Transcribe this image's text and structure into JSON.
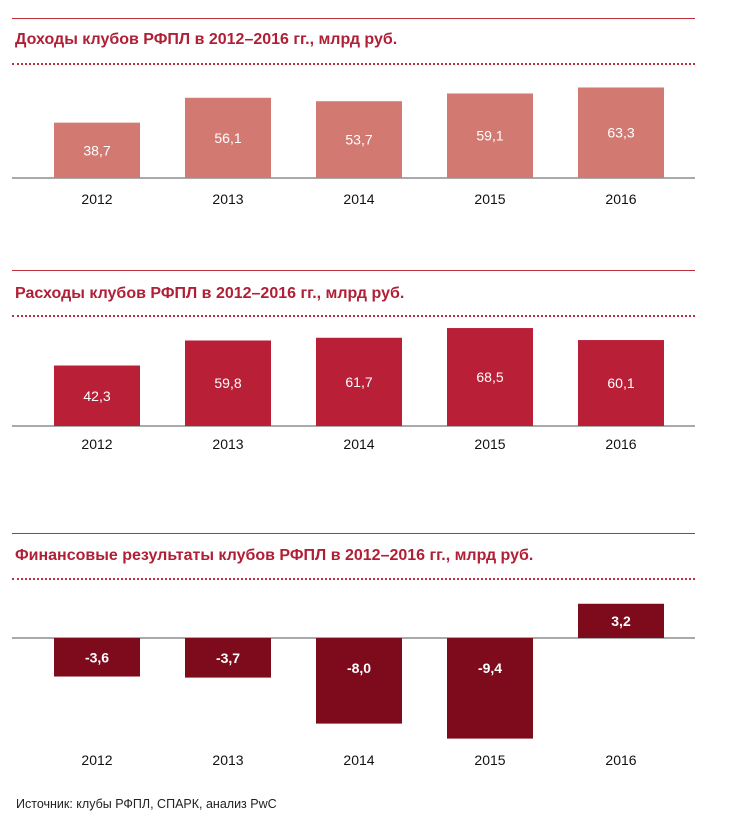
{
  "source_note": "Источник: клубы РФПЛ, СПАРК, анализ PwC",
  "chart_data": [
    {
      "type": "bar",
      "title": "Доходы клубов РФПЛ в 2012–2016 гг., млрд руб.",
      "categories": [
        "2012",
        "2013",
        "2014",
        "2015",
        "2016"
      ],
      "values": [
        38.7,
        56.1,
        53.7,
        59.1,
        63.3
      ],
      "value_labels": [
        "38,7",
        "56,1",
        "53,7",
        "59,1",
        "63,3"
      ],
      "color": "#d27a72",
      "xlabel": "",
      "ylabel": "",
      "grid": false
    },
    {
      "type": "bar",
      "title": "Расходы клубов РФПЛ в 2012–2016 гг., млрд руб.",
      "categories": [
        "2012",
        "2013",
        "2014",
        "2015",
        "2016"
      ],
      "values": [
        42.3,
        59.8,
        61.7,
        68.5,
        60.1
      ],
      "value_labels": [
        "42,3",
        "59,8",
        "61,7",
        "68,5",
        "60,1"
      ],
      "color": "#b91f36",
      "xlabel": "",
      "ylabel": "",
      "grid": false
    },
    {
      "type": "bar",
      "title": "Финансовые результаты клубов РФПЛ в 2012–2016 гг., млрд руб.",
      "categories": [
        "2012",
        "2013",
        "2014",
        "2015",
        "2016"
      ],
      "values": [
        -3.6,
        -3.7,
        -8.0,
        -9.4,
        3.2
      ],
      "value_labels": [
        "-3,6",
        "-3,7",
        "-8,0",
        "-9,4",
        "3,2"
      ],
      "color": "#7d0b1c",
      "xlabel": "",
      "ylabel": "",
      "grid": false
    }
  ]
}
